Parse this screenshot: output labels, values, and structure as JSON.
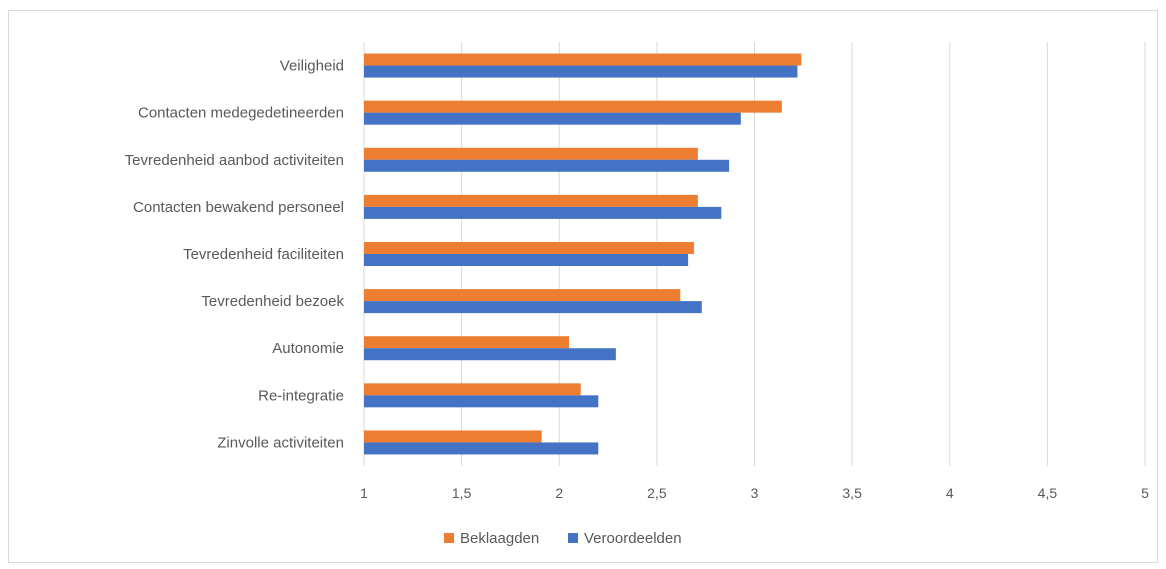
{
  "chart_data": {
    "type": "bar",
    "orientation": "horizontal",
    "categories": [
      "Veiligheid",
      "Contacten medegedetineerden",
      "Tevredenheid aanbod activiteiten",
      "Contacten bewakend personeel",
      "Tevredenheid faciliteiten",
      "Tevredenheid bezoek",
      "Autonomie",
      "Re-integratie",
      "Zinvolle activiteiten"
    ],
    "series": [
      {
        "name": "Beklaagden",
        "color": "#ed7d31",
        "values": [
          3.24,
          3.14,
          2.71,
          2.71,
          2.69,
          2.62,
          2.05,
          2.11,
          1.91
        ]
      },
      {
        "name": "Veroordeelden",
        "color": "#4472c4",
        "values": [
          3.22,
          2.93,
          2.87,
          2.83,
          2.66,
          2.73,
          2.29,
          2.2,
          2.2
        ]
      }
    ],
    "xlim": [
      1,
      5
    ],
    "xticks": [
      "1",
      "1,5",
      "2",
      "2,5",
      "3",
      "3,5",
      "4",
      "4,5",
      "5"
    ],
    "grid": "vertical",
    "legend_position": "bottom",
    "title": "",
    "xlabel": "",
    "ylabel": ""
  }
}
